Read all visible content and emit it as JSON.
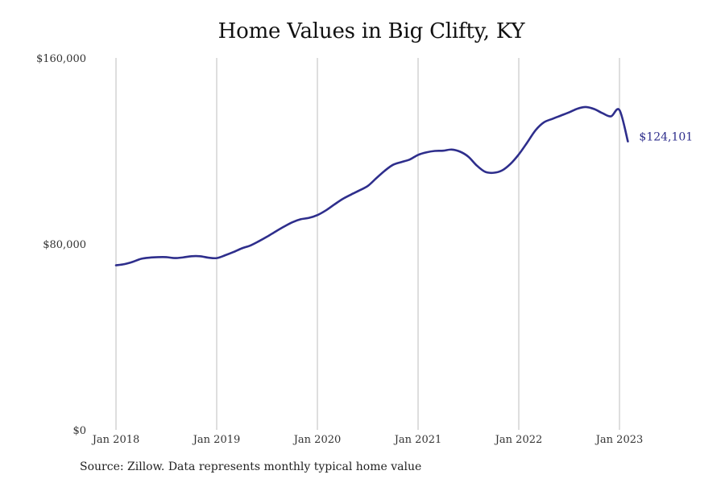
{
  "chart_data": {
    "type": "line",
    "title": "Home Values in Big Clifty, KY",
    "source_note": "Source: Zillow. Data represents monthly typical home value",
    "y_ticks": [
      {
        "value": 0,
        "label": "$0"
      },
      {
        "value": 80000,
        "label": "$80,000"
      },
      {
        "value": 160000,
        "label": "$160,000"
      }
    ],
    "x_ticks": [
      {
        "value": "2018-01",
        "label": "Jan 2018"
      },
      {
        "value": "2019-01",
        "label": "Jan 2019"
      },
      {
        "value": "2020-01",
        "label": "Jan 2020"
      },
      {
        "value": "2021-01",
        "label": "Jan 2021"
      },
      {
        "value": "2022-01",
        "label": "Jan 2022"
      },
      {
        "value": "2023-01",
        "label": "Jan 2023"
      }
    ],
    "ylim": [
      0,
      160000
    ],
    "xlim": [
      "2018-01",
      "2023-02"
    ],
    "grid": "vertical",
    "line_color": "#2e2e8c",
    "end_label": "$124,101",
    "series": [
      {
        "x": [
          "2018-01",
          "2018-02",
          "2018-03",
          "2018-04",
          "2018-05",
          "2018-06",
          "2018-07",
          "2018-08",
          "2018-09",
          "2018-10",
          "2018-11",
          "2018-12",
          "2019-01",
          "2019-02",
          "2019-03",
          "2019-04",
          "2019-05",
          "2019-06",
          "2019-07",
          "2019-08",
          "2019-09",
          "2019-10",
          "2019-11",
          "2019-12",
          "2020-01",
          "2020-02",
          "2020-03",
          "2020-04",
          "2020-05",
          "2020-06",
          "2020-07",
          "2020-08",
          "2020-09",
          "2020-10",
          "2020-11",
          "2020-12",
          "2021-01",
          "2021-02",
          "2021-03",
          "2021-04",
          "2021-05",
          "2021-06",
          "2021-07",
          "2021-08",
          "2021-09",
          "2021-10",
          "2021-11",
          "2021-12",
          "2022-01",
          "2022-02",
          "2022-03",
          "2022-04",
          "2022-05",
          "2022-06",
          "2022-07",
          "2022-08",
          "2022-09",
          "2022-10",
          "2022-11",
          "2022-12",
          "2023-01",
          "2023-02"
        ],
        "y": [
          70800,
          71300,
          72300,
          73600,
          74100,
          74300,
          74300,
          73900,
          74200,
          74700,
          74700,
          74100,
          73900,
          75100,
          76500,
          78100,
          79300,
          81100,
          83100,
          85300,
          87400,
          89300,
          90600,
          91200,
          92400,
          94400,
          96900,
          99300,
          101200,
          103000,
          104900,
          108200,
          111400,
          114000,
          115200,
          116300,
          118300,
          119400,
          120000,
          120100,
          120600,
          119700,
          117500,
          113700,
          111000,
          110600,
          111600,
          114400,
          118500,
          123600,
          128900,
          132300,
          133800,
          135200,
          136600,
          138200,
          138900,
          138000,
          136200,
          134900,
          137600,
          124101
        ]
      }
    ]
  }
}
